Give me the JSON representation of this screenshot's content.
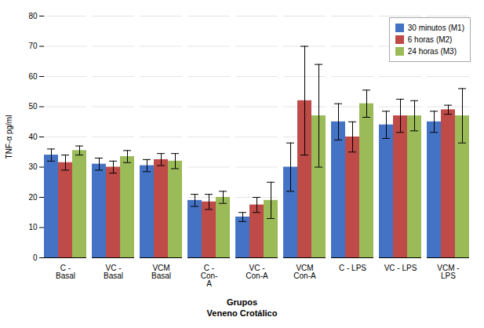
{
  "chart_data": {
    "type": "bar",
    "categories": [
      "C -\nBasal",
      "VC -\nBasal",
      "VCM\nBasal",
      "C -\nCon-\nA",
      "VC -\nCon-A",
      "VCM\nCon-A",
      "C - LPS",
      "VC - LPS",
      "VCM -\nLPS"
    ],
    "series": [
      {
        "name": "30 minutos (M1)",
        "color": "#4472C4",
        "values": [
          34.0,
          31.0,
          30.5,
          19.0,
          13.5,
          30.0,
          45.0,
          44.0,
          45.0
        ],
        "errors": [
          2.0,
          2.0,
          2.0,
          2.0,
          1.5,
          8.0,
          6.0,
          4.5,
          3.5
        ]
      },
      {
        "name": "6 horas (M2)",
        "color": "#BE4B48",
        "values": [
          31.5,
          30.0,
          32.5,
          18.5,
          17.5,
          52.0,
          40.0,
          47.0,
          49.0
        ],
        "errors": [
          2.5,
          2.0,
          2.0,
          2.5,
          2.5,
          18.0,
          5.0,
          5.5,
          1.5
        ]
      },
      {
        "name": "24 horas (M3)",
        "color": "#9BBB59",
        "values": [
          35.5,
          33.5,
          32.0,
          20.0,
          19.0,
          47.0,
          51.0,
          47.0,
          47.0
        ],
        "errors": [
          1.5,
          2.0,
          2.5,
          2.0,
          6.0,
          17.0,
          4.5,
          5.0,
          9.0
        ]
      }
    ],
    "xlabel": "Grupos\nVeneno Crotálico",
    "ylabel": "TNF-α pg/ml",
    "ylim": [
      0,
      80
    ],
    "yticks": [
      0,
      10,
      20,
      30,
      40,
      50,
      60,
      70,
      80
    ],
    "grid": true,
    "legend": "upper right"
  }
}
